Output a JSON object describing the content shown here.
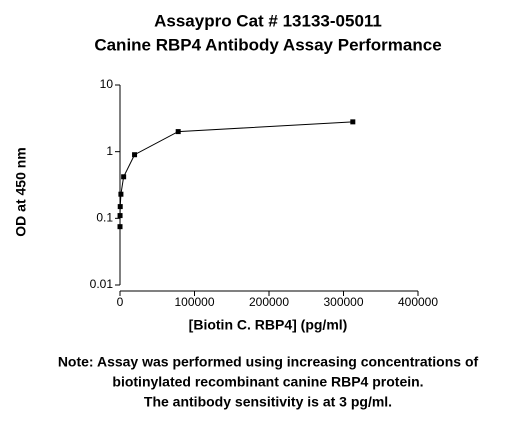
{
  "chart_data": {
    "type": "line",
    "title_lines": [
      "Assaypro Cat # 13133-05011",
      "Canine RBP4 Antibody Assay Performance"
    ],
    "x_label": "[Biotin C. RBP4] (pg/ml)",
    "y_label": "OD at 450 nm",
    "x": [
      312500,
      78125,
      19531,
      4883,
      1221,
      305,
      76,
      19
    ],
    "series": [
      {
        "color": "#000000",
        "values": [
          2.8,
          2.0,
          0.9,
          0.42,
          0.23,
          0.15,
          0.11,
          0.075
        ]
      }
    ],
    "xlim": [
      0,
      400000
    ],
    "xticks": [
      0,
      100000,
      200000,
      300000,
      400000
    ],
    "ylim": [
      0.01,
      10
    ],
    "yticks": [
      0.01,
      0.1,
      1,
      10
    ],
    "y_scale": "log",
    "note_lines": [
      "Note: Assay was performed using increasing concentrations of",
      "biotinylated recombinant canine RBP4 protein.",
      "The antibody sensitivity is at 3 pg/ml."
    ]
  }
}
